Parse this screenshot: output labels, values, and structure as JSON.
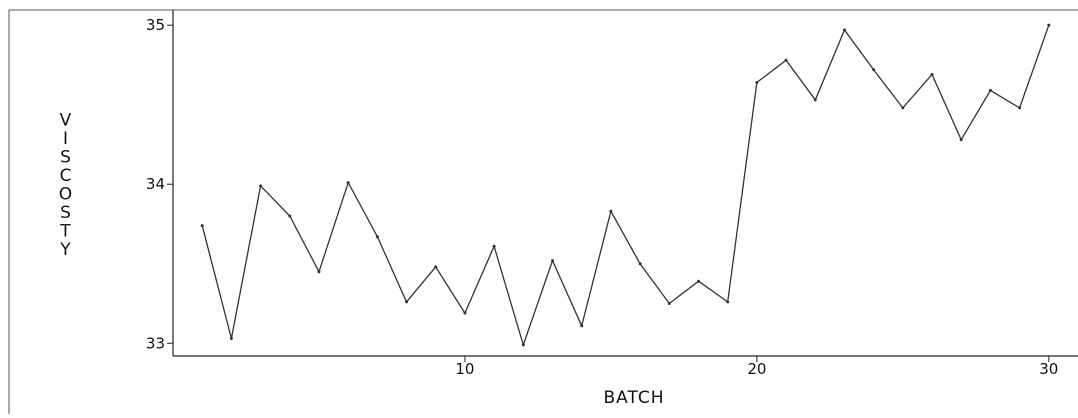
{
  "chart_data": {
    "type": "line",
    "title": "",
    "xlabel": "BATCH",
    "ylabel": "VISCOSTY",
    "xlim": [
      0,
      31
    ],
    "ylim": [
      32.92,
      35.02
    ],
    "x_ticks": [
      10,
      20,
      30
    ],
    "x_tick_labels": [
      "10",
      "20",
      "30"
    ],
    "y_ticks": [
      33,
      34,
      35
    ],
    "y_tick_labels": [
      "33",
      "34",
      "35"
    ],
    "grid": false,
    "legend": "none",
    "line_color": "#333333",
    "x": [
      1,
      2,
      3,
      4,
      5,
      6,
      7,
      8,
      9,
      10,
      11,
      12,
      13,
      14,
      15,
      16,
      17,
      18,
      19,
      20,
      21,
      22,
      23,
      24,
      25,
      26,
      27,
      28,
      29,
      30
    ],
    "series": [
      {
        "values": [
          33.74,
          33.03,
          33.99,
          33.8,
          33.45,
          34.01,
          33.67,
          33.26,
          33.48,
          33.19,
          33.61,
          32.99,
          33.52,
          33.11,
          33.83,
          33.5,
          33.25,
          33.39,
          33.26,
          34.64,
          34.78,
          34.53,
          34.97,
          34.72,
          34.48,
          34.69,
          34.28,
          34.59,
          34.48,
          35.0
        ]
      }
    ]
  }
}
